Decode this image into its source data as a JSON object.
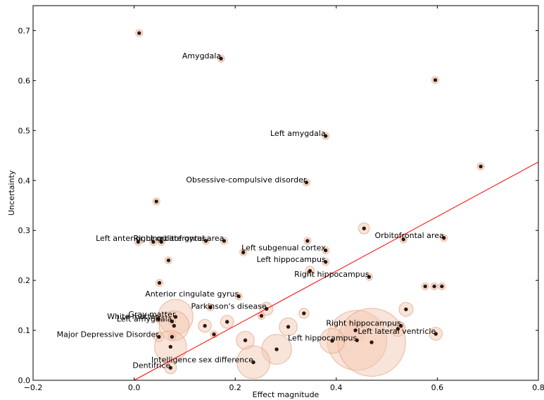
{
  "chart_data": {
    "type": "scatter",
    "xlabel": "Effect magnitude",
    "ylabel": "Uncertainty",
    "xlim": [
      -0.2,
      0.8
    ],
    "ylim": [
      0.0,
      0.75
    ],
    "xticks": [
      -0.2,
      0.0,
      0.2,
      0.4,
      0.6,
      0.8
    ],
    "xtick_labels": [
      "−0.2",
      "0.0",
      "0.2",
      "0.4",
      "0.6",
      "0.8"
    ],
    "yticks": [
      0.0,
      0.1,
      0.2,
      0.3,
      0.4,
      0.5,
      0.6,
      0.7
    ],
    "ytick_labels": [
      "0.0",
      "0.1",
      "0.2",
      "0.3",
      "0.4",
      "0.5",
      "0.6",
      "0.7"
    ],
    "grid": false,
    "reference_line": {
      "x": [
        0.0,
        0.8
      ],
      "y": [
        0.0,
        0.437
      ],
      "color": "#ff0000"
    },
    "point_color": "#2b1a14",
    "bubble_fill": "#f4c9b4",
    "bubble_stroke": "#e0a080",
    "points": [
      {
        "x": 0.01,
        "y": 0.695,
        "s": 0.0
      },
      {
        "x": 0.172,
        "y": 0.644,
        "s": 0.0,
        "label": "Amygdala"
      },
      {
        "x": 0.596,
        "y": 0.601,
        "s": 0.0
      },
      {
        "x": 0.379,
        "y": 0.489,
        "s": 0.0,
        "label": "Left amygdala"
      },
      {
        "x": 0.686,
        "y": 0.428,
        "s": 0.0
      },
      {
        "x": 0.341,
        "y": 0.396,
        "s": 0.0,
        "label": "Obsessive-compulsive disorder"
      },
      {
        "x": 0.044,
        "y": 0.358,
        "s": 0.0
      },
      {
        "x": 0.455,
        "y": 0.304,
        "s": 0.011
      },
      {
        "x": 0.008,
        "y": 0.277,
        "s": 0.0
      },
      {
        "x": 0.038,
        "y": 0.277,
        "s": 0.0
      },
      {
        "x": 0.054,
        "y": 0.277,
        "s": 0.0
      },
      {
        "x": 0.142,
        "y": 0.279,
        "s": 0.0,
        "label": "Left anterior cingulate gyrus"
      },
      {
        "x": 0.178,
        "y": 0.279,
        "s": 0.0,
        "label": "Right orbitofrontal area"
      },
      {
        "x": 0.343,
        "y": 0.279,
        "s": 0.0
      },
      {
        "x": 0.533,
        "y": 0.282,
        "s": 0.0
      },
      {
        "x": 0.613,
        "y": 0.285,
        "s": 0.0,
        "label": "Orbitofrontal area"
      },
      {
        "x": 0.216,
        "y": 0.256,
        "s": 0.0
      },
      {
        "x": 0.379,
        "y": 0.26,
        "s": 0.0,
        "label": "Left subgenual cortex"
      },
      {
        "x": 0.068,
        "y": 0.24,
        "s": 0.0
      },
      {
        "x": 0.379,
        "y": 0.237,
        "s": 0.0,
        "label": "Left hippocampus"
      },
      {
        "x": 0.348,
        "y": 0.219,
        "s": 0.009
      },
      {
        "x": 0.465,
        "y": 0.207,
        "s": 0.0,
        "label": "Right hippocampus"
      },
      {
        "x": 0.05,
        "y": 0.195,
        "s": 0.0
      },
      {
        "x": 0.576,
        "y": 0.188,
        "s": 0.0
      },
      {
        "x": 0.594,
        "y": 0.188,
        "s": 0.0
      },
      {
        "x": 0.609,
        "y": 0.188,
        "s": 0.0
      },
      {
        "x": 0.207,
        "y": 0.168,
        "s": 0.0,
        "label": "Anterior cingulate gyrus"
      },
      {
        "x": 0.262,
        "y": 0.143,
        "s": 0.013,
        "label": "Parkinson's disease"
      },
      {
        "x": 0.538,
        "y": 0.142,
        "s": 0.014
      },
      {
        "x": 0.336,
        "y": 0.134,
        "s": 0.01
      },
      {
        "x": 0.151,
        "y": 0.146,
        "s": 0.0
      },
      {
        "x": 0.252,
        "y": 0.129,
        "s": 0.0
      },
      {
        "x": 0.082,
        "y": 0.127,
        "s": 0.035,
        "label": "Gray matter"
      },
      {
        "x": 0.048,
        "y": 0.123,
        "s": 0.0,
        "label": "White matter"
      },
      {
        "x": 0.075,
        "y": 0.118,
        "s": 0.0,
        "label": "Left amygdala"
      },
      {
        "x": 0.184,
        "y": 0.117,
        "s": 0.013
      },
      {
        "x": 0.14,
        "y": 0.109,
        "s": 0.013
      },
      {
        "x": 0.079,
        "y": 0.109,
        "s": 0.03
      },
      {
        "x": 0.305,
        "y": 0.107,
        "s": 0.018
      },
      {
        "x": 0.528,
        "y": 0.109,
        "s": 0.0,
        "label": "Right hippocampus"
      },
      {
        "x": 0.522,
        "y": 0.103,
        "s": 0.015
      },
      {
        "x": 0.438,
        "y": 0.1,
        "s": 0.021
      },
      {
        "x": 0.158,
        "y": 0.092,
        "s": 0.0
      },
      {
        "x": 0.597,
        "y": 0.093,
        "s": 0.013,
        "label": "Left lateral ventricle"
      },
      {
        "x": 0.049,
        "y": 0.087,
        "s": 0.01,
        "label": "Major Depressive Disorder"
      },
      {
        "x": 0.075,
        "y": 0.087,
        "s": 0.0
      },
      {
        "x": 0.441,
        "y": 0.08,
        "s": 0.06,
        "label": "Left hippocampus"
      },
      {
        "x": 0.47,
        "y": 0.076,
        "s": 0.068
      },
      {
        "x": 0.392,
        "y": 0.079,
        "s": 0.025
      },
      {
        "x": 0.22,
        "y": 0.08,
        "s": 0.018
      },
      {
        "x": 0.072,
        "y": 0.067,
        "s": 0.032
      },
      {
        "x": 0.282,
        "y": 0.062,
        "s": 0.03
      },
      {
        "x": 0.236,
        "y": 0.036,
        "s": 0.033,
        "label": "Intelligence sex difference"
      },
      {
        "x": 0.072,
        "y": 0.025,
        "s": 0.012,
        "label": "Dentifrice"
      }
    ]
  }
}
